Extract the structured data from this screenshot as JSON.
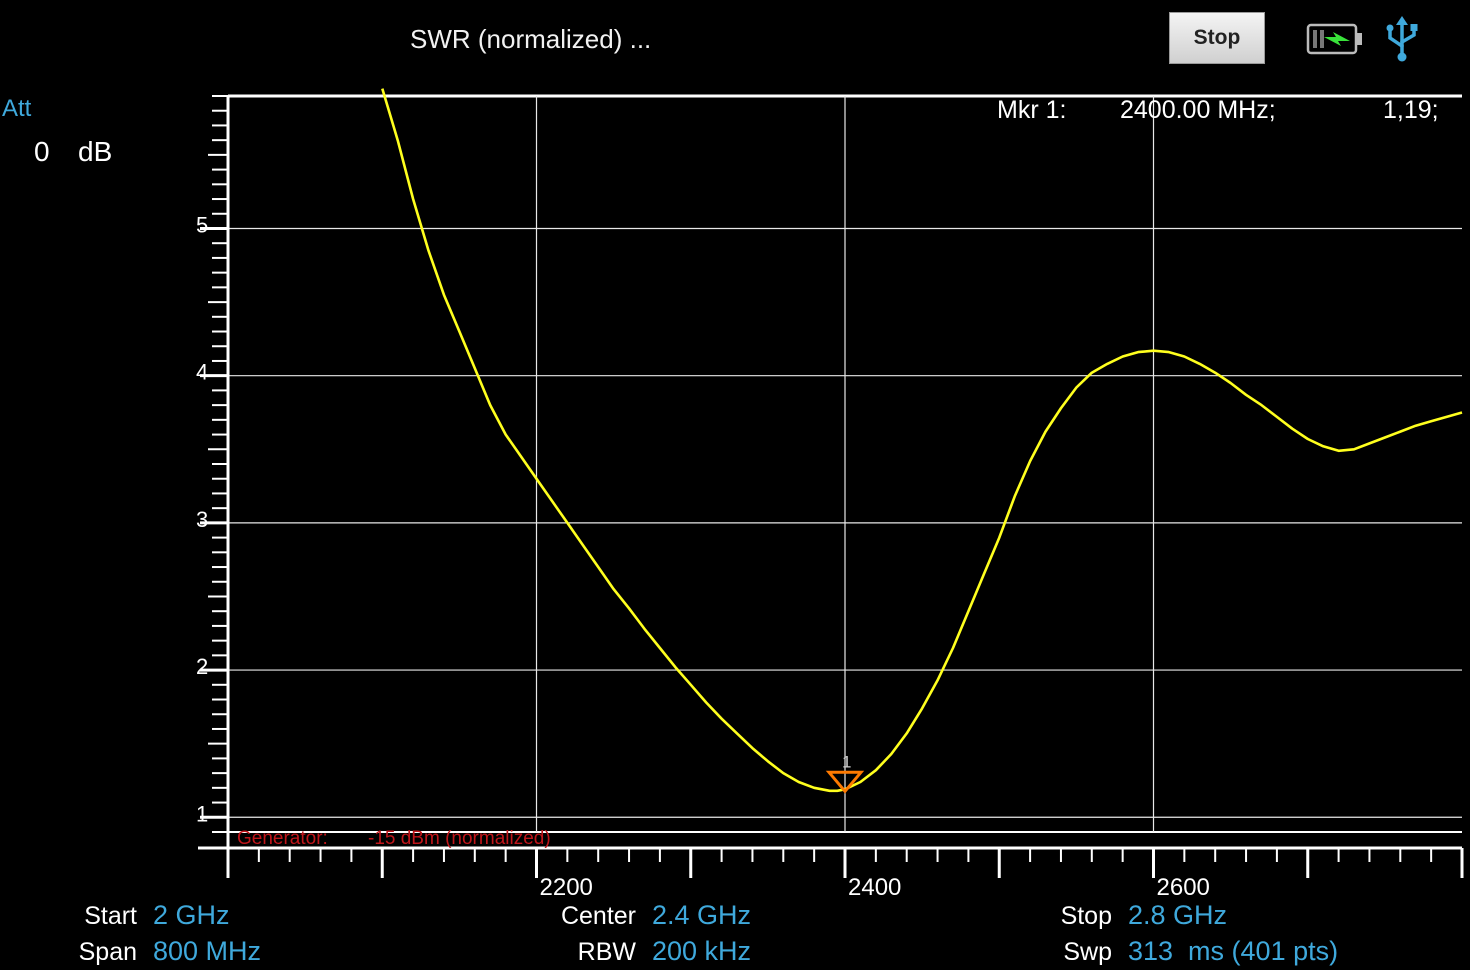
{
  "header": {
    "title": "SWR (normalized) ...",
    "stop_label": "Stop",
    "battery_icon": "battery-charging-icon",
    "usb_icon": "usb-icon"
  },
  "attenuation": {
    "label": "Att",
    "value": "0",
    "unit": "dB"
  },
  "marker": {
    "label": "Mkr 1:",
    "freq": "2400.00 MHz;",
    "value": "1,19;",
    "number": "1"
  },
  "generator": {
    "label": "Generator:",
    "value": "-15 dBm (normalized)"
  },
  "footer": {
    "start_label": "Start",
    "start_value": "2 GHz",
    "span_label": "Span",
    "span_value": "800 MHz",
    "center_label": "Center",
    "center_value": "2.4 GHz",
    "rbw_label": "RBW",
    "rbw_value": "200 kHz",
    "stop_label": "Stop",
    "stop_value": "2.8 GHz",
    "swp_label": "Swp",
    "swp_value": "313  ms (401 pts)"
  },
  "colors": {
    "trace": "#ffff1e",
    "accent": "#3fa9dc",
    "marker": "#ff7a00",
    "generator": "#c0151a",
    "grid": "#e8e8e8"
  },
  "chart_data": {
    "type": "line",
    "xlim": [
      2000,
      2800
    ],
    "ylim": [
      0.9,
      5.9
    ],
    "x_ticks": [
      2200,
      2400,
      2600
    ],
    "y_ticks": [
      1,
      2,
      3,
      4,
      5
    ],
    "grid": true,
    "series": [
      {
        "x": [
          2100,
          2110,
          2120,
          2130,
          2140,
          2150,
          2160,
          2170,
          2180,
          2190,
          2200,
          2210,
          2220,
          2230,
          2240,
          2250,
          2260,
          2270,
          2280,
          2290,
          2300,
          2310,
          2320,
          2330,
          2340,
          2350,
          2360,
          2370,
          2380,
          2390,
          2395,
          2400,
          2410,
          2420,
          2430,
          2440,
          2450,
          2460,
          2470,
          2480,
          2490,
          2500,
          2510,
          2520,
          2530,
          2540,
          2550,
          2560,
          2570,
          2580,
          2590,
          2600,
          2610,
          2620,
          2630,
          2640,
          2650,
          2660,
          2670,
          2680,
          2690,
          2700,
          2710,
          2720,
          2730,
          2740,
          2750,
          2760,
          2770,
          2780,
          2790,
          2800
        ],
        "y": [
          5.95,
          5.6,
          5.2,
          4.85,
          4.55,
          4.3,
          4.05,
          3.8,
          3.6,
          3.45,
          3.3,
          3.15,
          3.0,
          2.85,
          2.7,
          2.55,
          2.42,
          2.28,
          2.15,
          2.02,
          1.9,
          1.78,
          1.67,
          1.57,
          1.47,
          1.38,
          1.3,
          1.24,
          1.2,
          1.18,
          1.18,
          1.19,
          1.24,
          1.32,
          1.43,
          1.57,
          1.74,
          1.93,
          2.15,
          2.4,
          2.65,
          2.9,
          3.18,
          3.42,
          3.62,
          3.78,
          3.92,
          4.02,
          4.08,
          4.13,
          4.16,
          4.17,
          4.16,
          4.13,
          4.08,
          4.02,
          3.95,
          3.87,
          3.8,
          3.72,
          3.64,
          3.57,
          3.52,
          3.49,
          3.5,
          3.54,
          3.58,
          3.62,
          3.66,
          3.69,
          3.72,
          3.75
        ]
      }
    ]
  }
}
